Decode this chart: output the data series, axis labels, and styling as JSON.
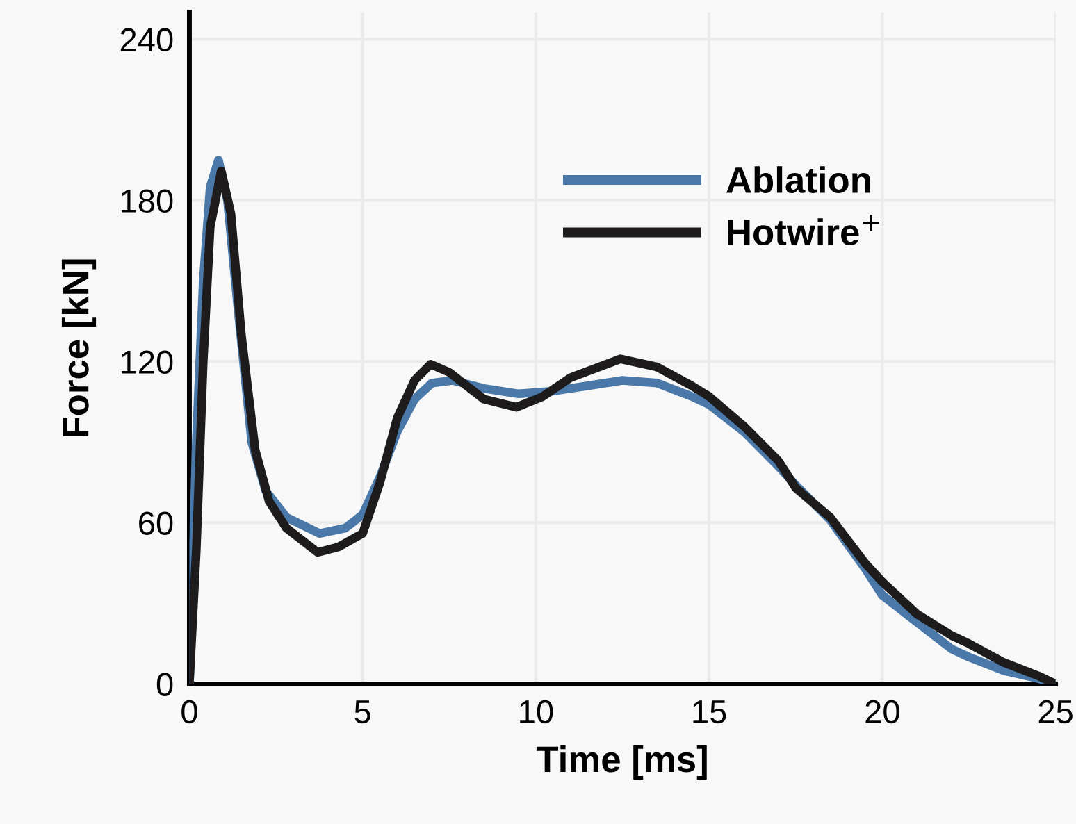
{
  "chart_data": {
    "type": "line",
    "xlabel": "Time [ms]",
    "ylabel": "Force [kN]",
    "xlim": [
      0,
      25
    ],
    "xticks": [
      0,
      5,
      10,
      15,
      20,
      25
    ],
    "ylim": [
      0,
      250
    ],
    "yticks": [
      0,
      60,
      120,
      180,
      240
    ],
    "grid": true,
    "legend": "top right",
    "line_style": "solid",
    "marker": "none",
    "series": [
      {
        "name": "Ablation",
        "color": "#4a78a8",
        "x": [
          0,
          0.2,
          0.4,
          0.6,
          0.84,
          1.1,
          1.4,
          1.8,
          2.2,
          2.8,
          3.76,
          4.5,
          5,
          5.5,
          6,
          6.5,
          7,
          7.6,
          8.5,
          9.5,
          10.5,
          11.5,
          12.5,
          13.5,
          14.5,
          15,
          16,
          17,
          17.5,
          18.5,
          19.5,
          20,
          21,
          22,
          22.5,
          23.5,
          24.5,
          25
        ],
        "values": [
          0,
          90,
          150,
          185,
          195,
          180,
          140,
          90,
          72,
          62,
          56,
          58,
          63,
          77,
          94,
          106,
          112,
          113,
          110,
          108,
          109,
          111,
          113,
          112,
          107,
          104,
          94,
          81,
          74,
          61,
          43,
          33,
          23,
          13,
          10,
          5,
          2,
          0
        ]
      },
      {
        "name": "Hotwire$^{+}$",
        "color": "#1e1b1c",
        "x": [
          0,
          0.2,
          0.4,
          0.6,
          0.92,
          1.2,
          1.5,
          1.9,
          2.3,
          2.8,
          3.7,
          4.3,
          5,
          5.5,
          6,
          6.5,
          6.96,
          7.5,
          8.5,
          9.44,
          10.2,
          11,
          12.44,
          13.5,
          14.5,
          15,
          16,
          17,
          17.5,
          18.5,
          19.5,
          20,
          21,
          22,
          22.5,
          23.5,
          24.5,
          25
        ],
        "values": [
          0,
          50,
          120,
          170,
          191,
          175,
          130,
          87,
          68,
          58,
          49,
          51,
          56,
          75,
          99,
          113,
          119,
          116,
          106,
          103,
          107,
          114,
          121,
          118,
          111,
          107,
          96,
          83,
          73,
          62,
          45,
          38,
          26,
          18,
          15,
          8,
          3,
          0
        ]
      }
    ]
  }
}
